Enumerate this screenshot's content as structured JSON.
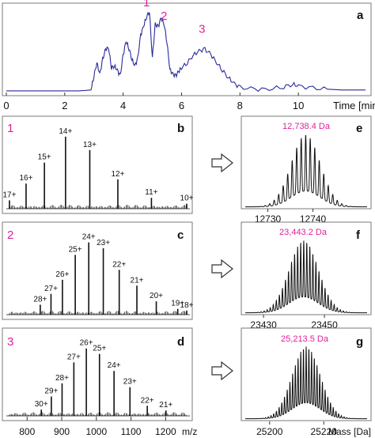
{
  "colors": {
    "trace": "#2b2b9a",
    "panel_border": "#7a7a7a",
    "peak_label": "#e0209a",
    "spectrum": "#111111",
    "text": "#111111"
  },
  "chart_data": [
    {
      "id": "a",
      "type": "line",
      "panel_letter": "a",
      "xlabel": "Time [min]",
      "x_ticks": [
        0,
        2,
        4,
        6,
        8,
        10
      ],
      "xlim": [
        0,
        12.3
      ],
      "ylim": [
        0,
        1.0
      ],
      "grid": false,
      "peak_labels": [
        {
          "text": "1",
          "x": 4.8,
          "y": 1.0
        },
        {
          "text": "2",
          "x": 5.4,
          "y": 0.84
        },
        {
          "text": "3",
          "x": 6.7,
          "y": 0.68
        }
      ],
      "series": [
        {
          "x": [
            0,
            1,
            2,
            2.5,
            2.9,
            3.0,
            3.1,
            3.2,
            3.3,
            3.4,
            3.5,
            3.6,
            3.7,
            3.8,
            3.9,
            4.0,
            4.1,
            4.2,
            4.3,
            4.4,
            4.5,
            4.6,
            4.7,
            4.8,
            4.9,
            5.0,
            5.1,
            5.2,
            5.3,
            5.4,
            5.5,
            5.6,
            5.7,
            5.8,
            5.9,
            6.0,
            6.2,
            6.4,
            6.6,
            6.8,
            7.0,
            7.2,
            7.4,
            7.6,
            7.8,
            8.0,
            8.5,
            9.0,
            9.5,
            9.8,
            10.0,
            10.5,
            11.0,
            11.5,
            12.0,
            12.3
          ],
          "y": [
            0.02,
            0.02,
            0.02,
            0.02,
            0.03,
            0.2,
            0.36,
            0.22,
            0.4,
            0.52,
            0.54,
            0.3,
            0.32,
            0.27,
            0.2,
            0.45,
            0.62,
            0.53,
            0.4,
            0.32,
            0.41,
            0.69,
            0.8,
            0.91,
            0.98,
            0.42,
            0.82,
            0.79,
            0.9,
            0.83,
            0.61,
            0.28,
            0.22,
            0.2,
            0.25,
            0.3,
            0.36,
            0.45,
            0.5,
            0.52,
            0.46,
            0.36,
            0.27,
            0.18,
            0.11,
            0.06,
            0.04,
            0.04,
            0.07,
            0.1,
            0.08,
            0.05,
            0.04,
            0.03,
            0.03,
            0.03
          ]
        }
      ]
    },
    {
      "id": "b",
      "type": "bar",
      "panel_number": "1",
      "panel_letter": "b",
      "xlim": [
        740,
        1270
      ],
      "ylim": [
        0,
        1.0
      ],
      "peaks": [
        {
          "label": "17+",
          "mz": 749,
          "value": 0.1
        },
        {
          "label": "16+",
          "mz": 797,
          "value": 0.3
        },
        {
          "label": "15+",
          "mz": 850,
          "value": 0.55
        },
        {
          "label": "14+",
          "mz": 911,
          "value": 0.86
        },
        {
          "label": "13+",
          "mz": 981,
          "value": 0.7
        },
        {
          "label": "12+",
          "mz": 1062,
          "value": 0.35
        },
        {
          "label": "11+",
          "mz": 1159,
          "value": 0.13
        },
        {
          "label": "10+",
          "mz": 1275,
          "value": 0.06
        }
      ]
    },
    {
      "id": "c",
      "type": "bar",
      "panel_number": "2",
      "panel_letter": "c",
      "xlim": [
        740,
        1270
      ],
      "ylim": [
        0,
        1.0
      ],
      "peaks": [
        {
          "label": "28+",
          "mz": 838,
          "value": 0.12
        },
        {
          "label": "27+",
          "mz": 869,
          "value": 0.25
        },
        {
          "label": "26+",
          "mz": 902,
          "value": 0.42
        },
        {
          "label": "25+",
          "mz": 939,
          "value": 0.72
        },
        {
          "label": "24+",
          "mz": 978,
          "value": 0.87
        },
        {
          "label": "23+",
          "mz": 1020,
          "value": 0.8
        },
        {
          "label": "22+",
          "mz": 1066,
          "value": 0.54
        },
        {
          "label": "21+",
          "mz": 1117,
          "value": 0.35
        },
        {
          "label": "20+",
          "mz": 1173,
          "value": 0.16
        },
        {
          "label": "19+",
          "mz": 1235,
          "value": 0.07
        },
        {
          "label": "18+",
          "mz": 1303,
          "value": 0.05
        }
      ]
    },
    {
      "id": "d",
      "type": "bar",
      "panel_number": "3",
      "panel_letter": "d",
      "xlabel": "m/z",
      "x_ticks": [
        800,
        900,
        1000,
        1100,
        1200
      ],
      "xlim": [
        740,
        1270
      ],
      "ylim": [
        0,
        1.0
      ],
      "peaks": [
        {
          "label": "30+",
          "mz": 841,
          "value": 0.08
        },
        {
          "label": "29+",
          "mz": 870,
          "value": 0.25
        },
        {
          "label": "28+",
          "mz": 901,
          "value": 0.42
        },
        {
          "label": "27+",
          "mz": 935,
          "value": 0.69
        },
        {
          "label": "26+",
          "mz": 971,
          "value": 0.87
        },
        {
          "label": "25+",
          "mz": 1009,
          "value": 0.8
        },
        {
          "label": "24+",
          "mz": 1051,
          "value": 0.58
        },
        {
          "label": "23+",
          "mz": 1097,
          "value": 0.37
        },
        {
          "label": "22+",
          "mz": 1147,
          "value": 0.13
        },
        {
          "label": "21+",
          "mz": 1201,
          "value": 0.07
        }
      ]
    },
    {
      "id": "e",
      "type": "line",
      "panel_letter": "e",
      "mass_label": "12,738.4 Da",
      "x_ticks": [
        12730,
        12740
      ],
      "xlim": [
        12725,
        12752
      ],
      "center": 12738.4,
      "sigma": 3.2,
      "spacing": 1.0,
      "ylim": [
        0,
        1.0
      ]
    },
    {
      "id": "f",
      "type": "line",
      "panel_letter": "f",
      "mass_label": "23,443.2 Da",
      "x_ticks": [
        23430,
        23450
      ],
      "xlim": [
        23424,
        23464
      ],
      "center": 23443.2,
      "sigma": 4.8,
      "spacing": 1.0,
      "ylim": [
        0,
        1.0
      ]
    },
    {
      "id": "g",
      "type": "line",
      "panel_letter": "g",
      "mass_label": "25,213.5 Da",
      "xlabel": "Mass [Da]",
      "x_ticks": [
        25200,
        25220
      ],
      "xlim": [
        25191,
        25236
      ],
      "center": 25213.5,
      "sigma": 5.2,
      "spacing": 1.0,
      "ylim": [
        0,
        1.0
      ]
    }
  ]
}
